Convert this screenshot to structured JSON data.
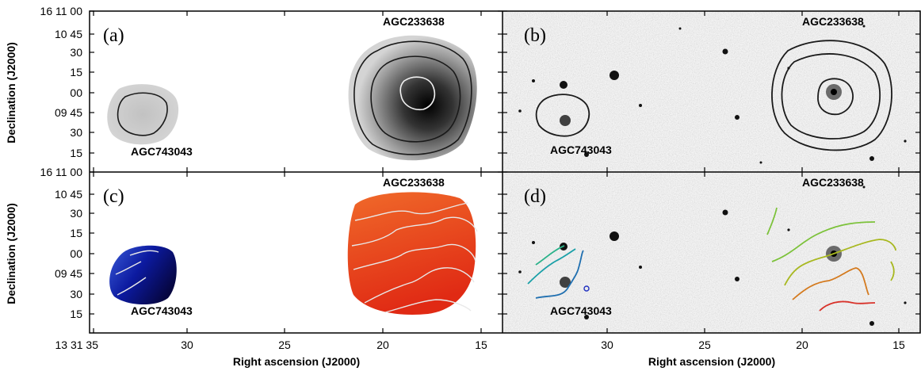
{
  "figure": {
    "panel_labels": [
      "(a)",
      "(b)",
      "(c)",
      "(d)"
    ],
    "galaxy_labels": {
      "north": "AGC233638",
      "south": "AGC743043"
    },
    "x_axis": {
      "title": "Right ascension (J2000)",
      "ticks_left": [
        "13 31 35",
        "30",
        "25",
        "20",
        "15"
      ],
      "ticks_right": [
        "30",
        "25",
        "20",
        "15"
      ]
    },
    "y_axis": {
      "title": "Declination (J2000)",
      "ticks": [
        "16 11 00",
        "10 45",
        "30",
        "15",
        "00",
        "09 45",
        "30",
        "15"
      ]
    },
    "colors": {
      "contour_dark": "#1a1a1a",
      "contour_light": "#f0f0f0",
      "velocity_receding": "#e8401c",
      "velocity_approaching": "#0a0a7a",
      "contour_channels": [
        "#1f6fb0",
        "#1aa0a8",
        "#2bb28a",
        "#7cc23a",
        "#a8b820",
        "#c9a022",
        "#d47a1e",
        "#d8322a"
      ]
    }
  }
}
